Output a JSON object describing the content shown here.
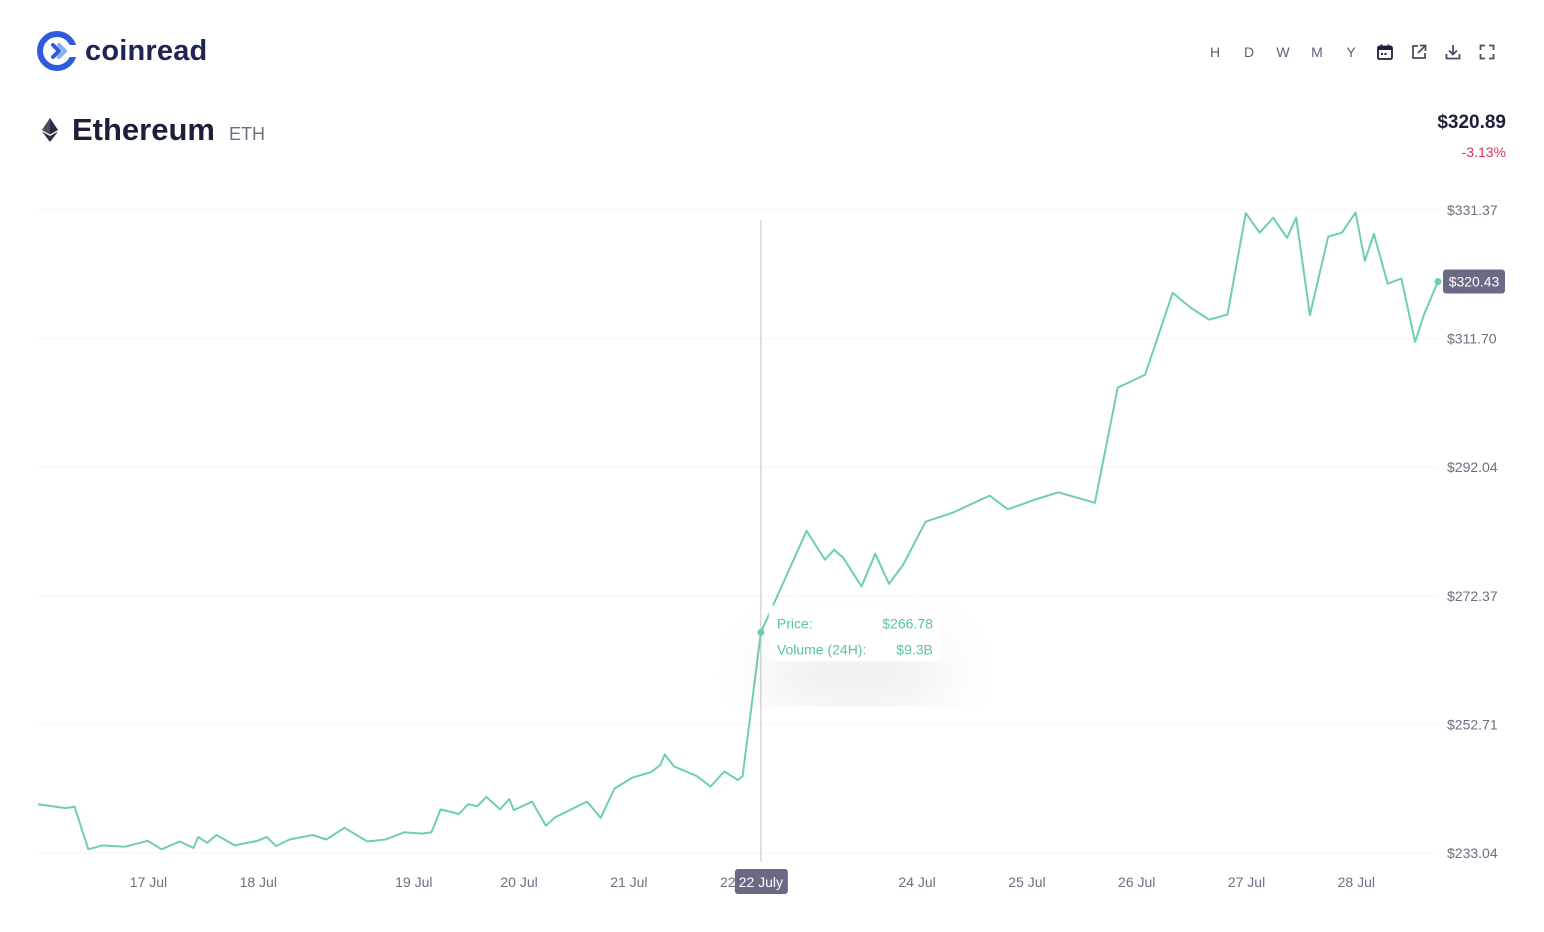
{
  "brand": {
    "name": "coinread"
  },
  "toolbar": {
    "ranges": [
      "H",
      "D",
      "W",
      "M",
      "Y"
    ],
    "icons": [
      "calendar-icon",
      "external-link-icon",
      "download-icon",
      "fullscreen-icon"
    ]
  },
  "asset": {
    "name": "Ethereum",
    "symbol": "ETH",
    "icon": "ethereum-icon"
  },
  "price": {
    "current": "$320.89",
    "change": "-3.13%"
  },
  "colors": {
    "line": "#6fcfaa",
    "negative": "#d6325a",
    "badge": "#6b6a86",
    "brand": "#2e5bdb"
  },
  "chart_data": {
    "type": "line",
    "x_axis": {
      "tick_labels": [
        "17 Jul",
        "18 Jul",
        "19 Jul",
        "20 Jul",
        "21 Jul",
        "22 Jul",
        "24 Jul",
        "25 Jul",
        "26 Jul",
        "27 Jul",
        "28 Jul"
      ]
    },
    "y_axis": {
      "tick_labels": [
        "$331.37",
        "$311.70",
        "$292.04",
        "$272.37",
        "$252.71",
        "$233.04"
      ],
      "ticks": [
        331.37,
        311.7,
        292.04,
        272.37,
        252.71,
        233.04
      ],
      "position": "right"
    },
    "ylim": [
      233.04,
      331.37
    ],
    "xlim": [
      "2020-07-16T00:00",
      "2020-07-28T18:00"
    ],
    "grid": true,
    "series": [
      {
        "x": [
          "2020-07-16T00:00",
          "2020-07-16T06:00",
          "2020-07-16T08:00",
          "2020-07-16T11:00",
          "2020-07-16T14:00",
          "2020-07-16T19:00",
          "2020-07-17T00:00",
          "2020-07-17T03:00",
          "2020-07-17T07:00",
          "2020-07-17T10:00",
          "2020-07-17T11:00",
          "2020-07-17T13:00",
          "2020-07-17T15:00",
          "2020-07-17T19:00",
          "2020-07-18T00:00",
          "2020-07-18T02:00",
          "2020-07-18T04:00",
          "2020-07-18T07:00",
          "2020-07-18T12:00",
          "2020-07-18T15:00",
          "2020-07-18T19:00",
          "2020-07-19T00:00",
          "2020-07-19T04:00",
          "2020-07-19T08:00",
          "2020-07-19T12:00",
          "2020-07-19T14:00",
          "2020-07-19T16:00",
          "2020-07-19T20:00",
          "2020-07-19T22:00",
          "2020-07-20T00:00",
          "2020-07-20T02:00",
          "2020-07-20T05:00",
          "2020-07-20T07:00",
          "2020-07-20T08:00",
          "2020-07-20T12:00",
          "2020-07-20T15:00",
          "2020-07-20T17:00",
          "2020-07-21T00:00",
          "2020-07-21T03:00",
          "2020-07-21T06:00",
          "2020-07-21T10:00",
          "2020-07-21T14:00",
          "2020-07-21T16:00",
          "2020-07-21T17:00",
          "2020-07-21T19:00",
          "2020-07-22T00:00",
          "2020-07-22T03:00",
          "2020-07-22T06:00",
          "2020-07-22T09:00",
          "2020-07-22T10:00",
          "2020-07-22T14:00",
          "2020-07-23T00:00",
          "2020-07-23T04:00",
          "2020-07-23T06:00",
          "2020-07-23T08:00",
          "2020-07-23T12:00",
          "2020-07-23T15:00",
          "2020-07-23T18:00",
          "2020-07-23T21:00",
          "2020-07-24T02:00",
          "2020-07-24T08:00",
          "2020-07-24T16:00",
          "2020-07-24T20:00",
          "2020-07-25T02:00",
          "2020-07-25T07:00",
          "2020-07-25T15:00",
          "2020-07-25T20:00",
          "2020-07-26T02:00",
          "2020-07-26T08:00",
          "2020-07-26T12:00",
          "2020-07-26T16:00",
          "2020-07-26T20:00",
          "2020-07-27T00:00",
          "2020-07-27T03:00",
          "2020-07-27T06:00",
          "2020-07-27T09:00",
          "2020-07-27T11:00",
          "2020-07-27T14:00",
          "2020-07-27T18:00",
          "2020-07-27T21:00",
          "2020-07-28T00:00",
          "2020-07-28T02:00",
          "2020-07-28T04:00",
          "2020-07-28T07:00",
          "2020-07-28T10:00",
          "2020-07-28T13:00",
          "2020-07-28T15:00",
          "2020-07-28T18:00"
        ],
        "y": [
          240.5,
          239.9,
          240.1,
          233.6,
          234.2,
          234.0,
          234.9,
          233.6,
          234.8,
          233.8,
          235.5,
          234.6,
          235.8,
          234.2,
          234.9,
          235.5,
          234.1,
          235.1,
          235.8,
          235.1,
          236.9,
          234.8,
          235.1,
          236.2,
          236.0,
          236.2,
          239.7,
          239.0,
          240.5,
          240.2,
          241.6,
          239.7,
          241.3,
          239.6,
          240.9,
          237.2,
          238.5,
          240.9,
          238.4,
          242.9,
          244.6,
          245.4,
          246.5,
          248.1,
          246.3,
          244.8,
          243.2,
          245.5,
          244.2,
          244.8,
          266.78,
          282.3,
          277.9,
          279.4,
          278.2,
          273.8,
          278.8,
          274.2,
          277.0,
          283.7,
          285.1,
          287.7,
          285.6,
          287.1,
          288.2,
          286.6,
          304.2,
          306.2,
          318.7,
          316.4,
          314.6,
          315.4,
          330.9,
          327.9,
          330.2,
          327.1,
          330.2,
          315.3,
          327.3,
          327.9,
          331.0,
          323.6,
          327.7,
          320.1,
          320.9,
          311.2,
          315.5,
          320.43
        ],
        "last_value_label": "$320.43"
      }
    ],
    "tooltip": {
      "date_label": "22 July",
      "price_label": "Price:",
      "price_value": "$266.78",
      "volume_label": "Volume (24H):",
      "volume_value": "$9.3B"
    }
  }
}
